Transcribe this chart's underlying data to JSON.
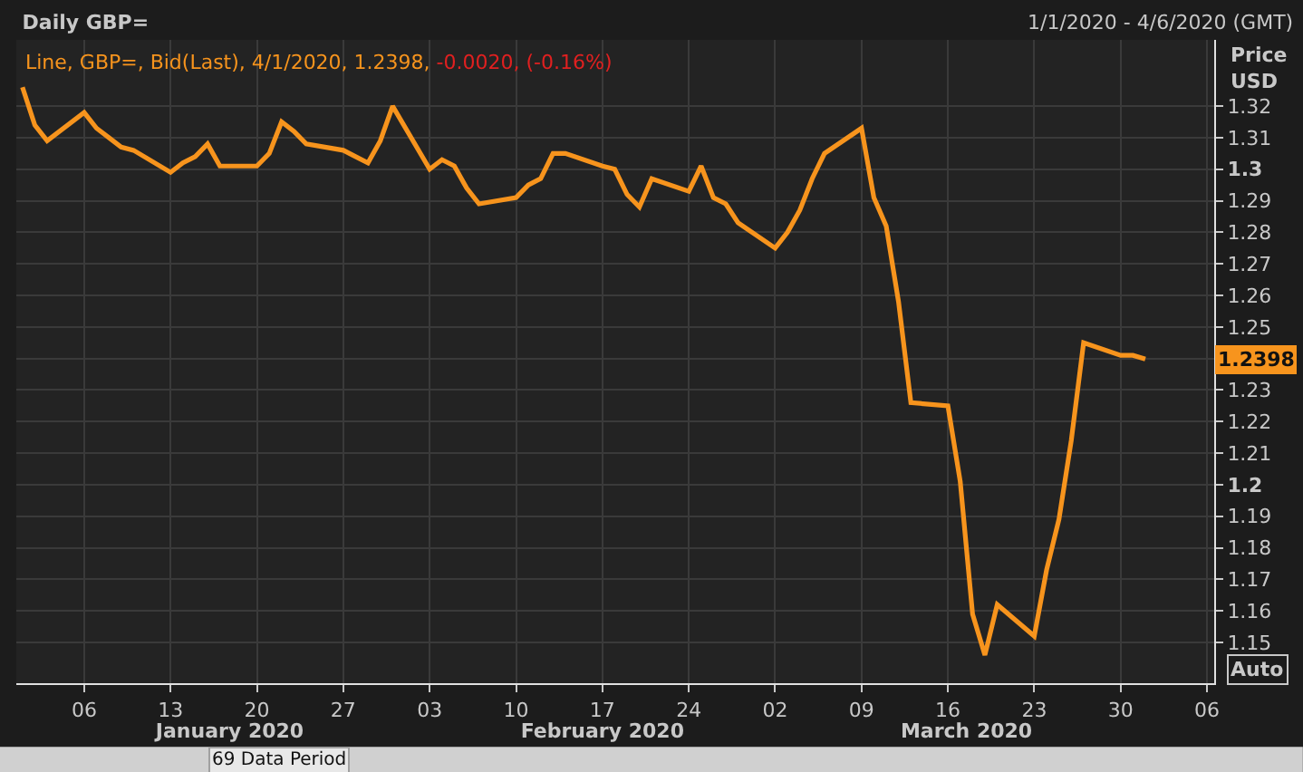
{
  "chart_data": {
    "type": "line",
    "title": "Daily GBP=",
    "subtitle": "1/1/2020 - 4/6/2020 (GMT)",
    "ylabel": "Price USD",
    "x": [
      "2020-01-01",
      "2020-01-02",
      "2020-01-03",
      "2020-01-06",
      "2020-01-07",
      "2020-01-08",
      "2020-01-09",
      "2020-01-10",
      "2020-01-13",
      "2020-01-14",
      "2020-01-15",
      "2020-01-16",
      "2020-01-17",
      "2020-01-20",
      "2020-01-21",
      "2020-01-22",
      "2020-01-23",
      "2020-01-24",
      "2020-01-27",
      "2020-01-28",
      "2020-01-29",
      "2020-01-30",
      "2020-01-31",
      "2020-02-03",
      "2020-02-04",
      "2020-02-05",
      "2020-02-06",
      "2020-02-07",
      "2020-02-10",
      "2020-02-11",
      "2020-02-12",
      "2020-02-13",
      "2020-02-14",
      "2020-02-17",
      "2020-02-18",
      "2020-02-19",
      "2020-02-20",
      "2020-02-21",
      "2020-02-24",
      "2020-02-25",
      "2020-02-26",
      "2020-02-27",
      "2020-02-28",
      "2020-03-02",
      "2020-03-03",
      "2020-03-04",
      "2020-03-05",
      "2020-03-06",
      "2020-03-09",
      "2020-03-10",
      "2020-03-11",
      "2020-03-12",
      "2020-03-13",
      "2020-03-16",
      "2020-03-17",
      "2020-03-18",
      "2020-03-19",
      "2020-03-20",
      "2020-03-23",
      "2020-03-24",
      "2020-03-25",
      "2020-03-26",
      "2020-03-27",
      "2020-03-30",
      "2020-03-31",
      "2020-04-01"
    ],
    "series": [
      {
        "color": "#f7941d",
        "values": [
          1.326,
          1.314,
          1.309,
          1.318,
          1.313,
          1.31,
          1.307,
          1.306,
          1.299,
          1.302,
          1.304,
          1.308,
          1.301,
          1.301,
          1.305,
          1.315,
          1.312,
          1.308,
          1.306,
          1.304,
          1.302,
          1.309,
          1.32,
          1.3,
          1.303,
          1.301,
          1.294,
          1.289,
          1.291,
          1.295,
          1.297,
          1.305,
          1.305,
          1.301,
          1.3,
          1.292,
          1.288,
          1.297,
          1.293,
          1.301,
          1.291,
          1.289,
          1.283,
          1.275,
          1.28,
          1.287,
          1.297,
          1.305,
          1.313,
          1.291,
          1.282,
          1.258,
          1.226,
          1.225,
          1.201,
          1.159,
          1.146,
          1.162,
          1.152,
          1.173,
          1.189,
          1.214,
          1.245,
          1.241,
          1.241,
          1.2398
        ]
      }
    ],
    "xlim": [
      "2019-12-31T12:00",
      "2020-04-06T14:00"
    ],
    "xticks": [
      {
        "value": "2020-01-06",
        "label": "06"
      },
      {
        "value": "2020-01-13",
        "label": "13"
      },
      {
        "value": "2020-01-20",
        "label": "20"
      },
      {
        "value": "2020-01-27",
        "label": "27"
      },
      {
        "value": "2020-02-03",
        "label": "03"
      },
      {
        "value": "2020-02-10",
        "label": "10"
      },
      {
        "value": "2020-02-17",
        "label": "17"
      },
      {
        "value": "2020-02-24",
        "label": "24"
      },
      {
        "value": "2020-03-02",
        "label": "02"
      },
      {
        "value": "2020-03-09",
        "label": "09"
      },
      {
        "value": "2020-03-16",
        "label": "16"
      },
      {
        "value": "2020-03-23",
        "label": "23"
      },
      {
        "value": "2020-03-30",
        "label": "30"
      },
      {
        "value": "2020-04-06",
        "label": "06"
      }
    ],
    "x2lim": [
      "2019-12-31T12:00",
      "2020-04-06T14:00"
    ],
    "x2ticks": [
      {
        "value": "2020-01-17T19:00",
        "label": "January 2020"
      },
      {
        "value": "2020-02-17",
        "label": "February 2020"
      },
      {
        "value": "2020-03-17T12:00",
        "label": "March 2020"
      }
    ],
    "ylim": [
      1.137,
      1.341
    ],
    "yticks": [
      1.15,
      1.16,
      1.17,
      1.18,
      1.19,
      1.2,
      1.21,
      1.22,
      1.23,
      {
        "value": 1.24,
        "label": null
      },
      1.25,
      1.26,
      1.27,
      1.28,
      1.29,
      1.3,
      1.31,
      1.32
    ],
    "grid": true,
    "legend": false,
    "line_style": "solid",
    "marker": "none",
    "annotations": [
      "Line, GBP=, Bid(Last), 4/1/2020, 1.2398,",
      "-0.0020, (-0.16%)",
      "1.2398",
      "Auto",
      "69 Data Period"
    ]
  }
}
